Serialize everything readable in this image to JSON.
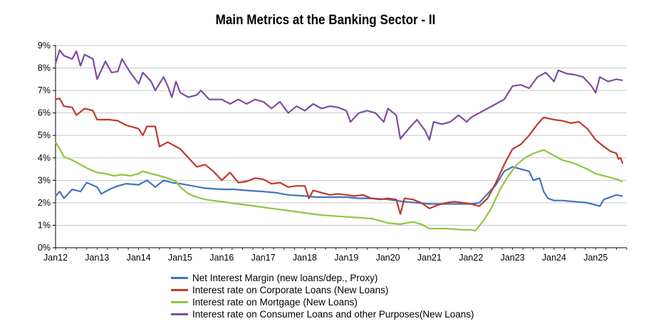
{
  "chart_data": {
    "type": "line",
    "title": "Main Metrics at the Banking Sector - II",
    "xlabel": "",
    "ylabel": "",
    "ylim": [
      0,
      9
    ],
    "y_ticks": [
      "0%",
      "1%",
      "2%",
      "3%",
      "4%",
      "5%",
      "6%",
      "7%",
      "8%",
      "9%"
    ],
    "x_ticks": [
      "Jan12",
      "Jan13",
      "Jan14",
      "Jan15",
      "Jan16",
      "Jan17",
      "Jan18",
      "Jan19",
      "Jan20",
      "Jan21",
      "Jan22",
      "Jan23",
      "Jan24",
      "Jan25"
    ],
    "x_range_years": [
      2012,
      2025.75
    ],
    "grid": "horizontal",
    "legend": "bottom",
    "series": [
      {
        "name": "Net Interest Margin (new loans/dep., Proxy)",
        "color": "#4472C4",
        "points": [
          [
            2012.0,
            2.3
          ],
          [
            2012.1,
            2.5
          ],
          [
            2012.2,
            2.2
          ],
          [
            2012.4,
            2.6
          ],
          [
            2012.6,
            2.5
          ],
          [
            2012.75,
            2.9
          ],
          [
            2013.0,
            2.7
          ],
          [
            2013.1,
            2.4
          ],
          [
            2013.3,
            2.6
          ],
          [
            2013.5,
            2.75
          ],
          [
            2013.7,
            2.85
          ],
          [
            2014.0,
            2.8
          ],
          [
            2014.2,
            3.0
          ],
          [
            2014.4,
            2.7
          ],
          [
            2014.6,
            3.0
          ],
          [
            2014.8,
            2.9
          ],
          [
            2015.0,
            2.85
          ],
          [
            2015.3,
            2.75
          ],
          [
            2015.6,
            2.65
          ],
          [
            2016.0,
            2.6
          ],
          [
            2016.3,
            2.6
          ],
          [
            2016.6,
            2.55
          ],
          [
            2017.0,
            2.5
          ],
          [
            2017.3,
            2.45
          ],
          [
            2017.6,
            2.35
          ],
          [
            2018.0,
            2.3
          ],
          [
            2018.3,
            2.25
          ],
          [
            2018.6,
            2.25
          ],
          [
            2019.0,
            2.25
          ],
          [
            2019.3,
            2.2
          ],
          [
            2019.6,
            2.2
          ],
          [
            2020.0,
            2.15
          ],
          [
            2020.2,
            2.1
          ],
          [
            2020.4,
            2.05
          ],
          [
            2020.7,
            2.0
          ],
          [
            2021.0,
            1.95
          ],
          [
            2021.3,
            1.95
          ],
          [
            2021.6,
            1.95
          ],
          [
            2022.0,
            1.95
          ],
          [
            2022.2,
            2.0
          ],
          [
            2022.4,
            2.4
          ],
          [
            2022.6,
            2.8
          ],
          [
            2022.8,
            3.4
          ],
          [
            2023.0,
            3.6
          ],
          [
            2023.2,
            3.5
          ],
          [
            2023.4,
            3.4
          ],
          [
            2023.5,
            3.0
          ],
          [
            2023.65,
            3.1
          ],
          [
            2023.75,
            2.5
          ],
          [
            2023.85,
            2.2
          ],
          [
            2024.0,
            2.1
          ],
          [
            2024.2,
            2.1
          ],
          [
            2024.5,
            2.05
          ],
          [
            2024.8,
            2.0
          ],
          [
            2025.0,
            1.9
          ],
          [
            2025.1,
            1.85
          ],
          [
            2025.2,
            2.15
          ],
          [
            2025.35,
            2.25
          ],
          [
            2025.5,
            2.35
          ],
          [
            2025.65,
            2.3
          ]
        ]
      },
      {
        "name": "Interest rate on Corporate Loans (New Loans)",
        "color": "#C0392B",
        "points": [
          [
            2012.0,
            6.6
          ],
          [
            2012.1,
            6.65
          ],
          [
            2012.2,
            6.3
          ],
          [
            2012.4,
            6.25
          ],
          [
            2012.5,
            5.9
          ],
          [
            2012.7,
            6.2
          ],
          [
            2012.9,
            6.1
          ],
          [
            2013.0,
            5.7
          ],
          [
            2013.3,
            5.7
          ],
          [
            2013.5,
            5.65
          ],
          [
            2013.7,
            5.45
          ],
          [
            2014.0,
            5.3
          ],
          [
            2014.1,
            5.0
          ],
          [
            2014.2,
            5.4
          ],
          [
            2014.4,
            5.4
          ],
          [
            2014.5,
            4.5
          ],
          [
            2014.7,
            4.7
          ],
          [
            2014.9,
            4.5
          ],
          [
            2015.0,
            4.4
          ],
          [
            2015.2,
            4.0
          ],
          [
            2015.4,
            3.6
          ],
          [
            2015.6,
            3.7
          ],
          [
            2015.8,
            3.4
          ],
          [
            2016.0,
            3.0
          ],
          [
            2016.2,
            3.35
          ],
          [
            2016.4,
            2.9
          ],
          [
            2016.6,
            2.95
          ],
          [
            2016.8,
            3.1
          ],
          [
            2017.0,
            3.05
          ],
          [
            2017.2,
            2.85
          ],
          [
            2017.4,
            2.9
          ],
          [
            2017.6,
            2.7
          ],
          [
            2017.8,
            2.75
          ],
          [
            2018.0,
            2.75
          ],
          [
            2018.1,
            2.2
          ],
          [
            2018.2,
            2.55
          ],
          [
            2018.4,
            2.45
          ],
          [
            2018.6,
            2.35
          ],
          [
            2018.8,
            2.4
          ],
          [
            2019.0,
            2.35
          ],
          [
            2019.2,
            2.3
          ],
          [
            2019.4,
            2.35
          ],
          [
            2019.6,
            2.2
          ],
          [
            2019.8,
            2.15
          ],
          [
            2020.0,
            2.2
          ],
          [
            2020.2,
            2.15
          ],
          [
            2020.3,
            1.5
          ],
          [
            2020.4,
            2.2
          ],
          [
            2020.6,
            2.15
          ],
          [
            2020.8,
            2.0
          ],
          [
            2021.0,
            1.75
          ],
          [
            2021.2,
            1.9
          ],
          [
            2021.4,
            2.0
          ],
          [
            2021.6,
            2.05
          ],
          [
            2021.8,
            2.0
          ],
          [
            2022.0,
            1.95
          ],
          [
            2022.2,
            1.85
          ],
          [
            2022.4,
            2.2
          ],
          [
            2022.6,
            2.9
          ],
          [
            2022.8,
            3.7
          ],
          [
            2023.0,
            4.4
          ],
          [
            2023.2,
            4.6
          ],
          [
            2023.4,
            5.0
          ],
          [
            2023.6,
            5.5
          ],
          [
            2023.75,
            5.8
          ],
          [
            2024.0,
            5.7
          ],
          [
            2024.2,
            5.65
          ],
          [
            2024.4,
            5.55
          ],
          [
            2024.6,
            5.6
          ],
          [
            2024.8,
            5.3
          ],
          [
            2025.0,
            4.8
          ],
          [
            2025.2,
            4.5
          ],
          [
            2025.35,
            4.3
          ],
          [
            2025.5,
            4.2
          ],
          [
            2025.55,
            3.95
          ],
          [
            2025.6,
            4.0
          ],
          [
            2025.65,
            3.75
          ]
        ]
      },
      {
        "name": "Interest rate on Mortgage (New Loans)",
        "color": "#8DC63F",
        "points": [
          [
            2012.0,
            4.7
          ],
          [
            2012.1,
            4.4
          ],
          [
            2012.2,
            4.05
          ],
          [
            2012.4,
            3.9
          ],
          [
            2012.6,
            3.7
          ],
          [
            2012.8,
            3.5
          ],
          [
            2013.0,
            3.35
          ],
          [
            2013.2,
            3.3
          ],
          [
            2013.4,
            3.2
          ],
          [
            2013.6,
            3.25
          ],
          [
            2013.8,
            3.2
          ],
          [
            2014.0,
            3.3
          ],
          [
            2014.1,
            3.4
          ],
          [
            2014.3,
            3.3
          ],
          [
            2014.5,
            3.2
          ],
          [
            2014.7,
            3.1
          ],
          [
            2014.9,
            2.95
          ],
          [
            2015.0,
            2.7
          ],
          [
            2015.2,
            2.4
          ],
          [
            2015.4,
            2.25
          ],
          [
            2015.6,
            2.15
          ],
          [
            2016.0,
            2.05
          ],
          [
            2016.4,
            1.95
          ],
          [
            2016.8,
            1.85
          ],
          [
            2017.2,
            1.75
          ],
          [
            2017.6,
            1.65
          ],
          [
            2018.0,
            1.55
          ],
          [
            2018.4,
            1.45
          ],
          [
            2018.8,
            1.4
          ],
          [
            2019.2,
            1.35
          ],
          [
            2019.6,
            1.3
          ],
          [
            2019.8,
            1.2
          ],
          [
            2020.0,
            1.1
          ],
          [
            2020.3,
            1.05
          ],
          [
            2020.6,
            1.15
          ],
          [
            2020.8,
            1.05
          ],
          [
            2021.0,
            0.85
          ],
          [
            2021.4,
            0.85
          ],
          [
            2021.8,
            0.8
          ],
          [
            2022.0,
            0.8
          ],
          [
            2022.1,
            0.75
          ],
          [
            2022.3,
            1.2
          ],
          [
            2022.5,
            1.8
          ],
          [
            2022.7,
            2.6
          ],
          [
            2022.9,
            3.2
          ],
          [
            2023.1,
            3.7
          ],
          [
            2023.3,
            4.0
          ],
          [
            2023.5,
            4.2
          ],
          [
            2023.75,
            4.35
          ],
          [
            2024.0,
            4.1
          ],
          [
            2024.2,
            3.9
          ],
          [
            2024.5,
            3.75
          ],
          [
            2024.8,
            3.5
          ],
          [
            2025.0,
            3.3
          ],
          [
            2025.3,
            3.15
          ],
          [
            2025.5,
            3.05
          ],
          [
            2025.65,
            2.95
          ]
        ]
      },
      {
        "name": "Interest rate on Consumer Loans and other Purposes(New Loans)",
        "color": "#7D4CA3",
        "points": [
          [
            2012.0,
            8.2
          ],
          [
            2012.1,
            8.8
          ],
          [
            2012.2,
            8.55
          ],
          [
            2012.4,
            8.4
          ],
          [
            2012.5,
            8.75
          ],
          [
            2012.6,
            8.1
          ],
          [
            2012.7,
            8.6
          ],
          [
            2012.9,
            8.4
          ],
          [
            2013.0,
            7.5
          ],
          [
            2013.2,
            8.3
          ],
          [
            2013.35,
            7.8
          ],
          [
            2013.5,
            7.85
          ],
          [
            2013.6,
            8.4
          ],
          [
            2013.8,
            7.8
          ],
          [
            2014.0,
            7.3
          ],
          [
            2014.1,
            7.8
          ],
          [
            2014.3,
            7.4
          ],
          [
            2014.4,
            7.0
          ],
          [
            2014.6,
            7.6
          ],
          [
            2014.7,
            7.2
          ],
          [
            2014.8,
            6.7
          ],
          [
            2014.9,
            7.4
          ],
          [
            2015.0,
            6.9
          ],
          [
            2015.2,
            6.7
          ],
          [
            2015.4,
            6.8
          ],
          [
            2015.5,
            7.0
          ],
          [
            2015.7,
            6.6
          ],
          [
            2016.0,
            6.6
          ],
          [
            2016.2,
            6.4
          ],
          [
            2016.4,
            6.6
          ],
          [
            2016.6,
            6.4
          ],
          [
            2016.8,
            6.6
          ],
          [
            2017.0,
            6.5
          ],
          [
            2017.2,
            6.2
          ],
          [
            2017.4,
            6.5
          ],
          [
            2017.6,
            6.0
          ],
          [
            2017.8,
            6.3
          ],
          [
            2018.0,
            6.1
          ],
          [
            2018.2,
            6.4
          ],
          [
            2018.4,
            6.2
          ],
          [
            2018.6,
            6.3
          ],
          [
            2018.8,
            6.25
          ],
          [
            2019.0,
            6.1
          ],
          [
            2019.1,
            5.6
          ],
          [
            2019.3,
            6.0
          ],
          [
            2019.5,
            6.1
          ],
          [
            2019.7,
            6.0
          ],
          [
            2019.9,
            5.6
          ],
          [
            2020.0,
            6.2
          ],
          [
            2020.2,
            5.9
          ],
          [
            2020.3,
            4.85
          ],
          [
            2020.5,
            5.3
          ],
          [
            2020.7,
            5.7
          ],
          [
            2020.9,
            5.2
          ],
          [
            2021.0,
            4.8
          ],
          [
            2021.1,
            5.6
          ],
          [
            2021.3,
            5.5
          ],
          [
            2021.5,
            5.6
          ],
          [
            2021.7,
            5.9
          ],
          [
            2021.9,
            5.6
          ],
          [
            2022.0,
            5.8
          ],
          [
            2022.2,
            6.0
          ],
          [
            2022.4,
            6.2
          ],
          [
            2022.6,
            6.4
          ],
          [
            2022.8,
            6.6
          ],
          [
            2023.0,
            7.2
          ],
          [
            2023.2,
            7.25
          ],
          [
            2023.4,
            7.1
          ],
          [
            2023.6,
            7.6
          ],
          [
            2023.8,
            7.8
          ],
          [
            2024.0,
            7.4
          ],
          [
            2024.1,
            7.9
          ],
          [
            2024.3,
            7.75
          ],
          [
            2024.5,
            7.7
          ],
          [
            2024.7,
            7.6
          ],
          [
            2024.9,
            7.2
          ],
          [
            2025.0,
            6.9
          ],
          [
            2025.1,
            7.6
          ],
          [
            2025.3,
            7.4
          ],
          [
            2025.5,
            7.5
          ],
          [
            2025.65,
            7.45
          ]
        ]
      }
    ]
  }
}
